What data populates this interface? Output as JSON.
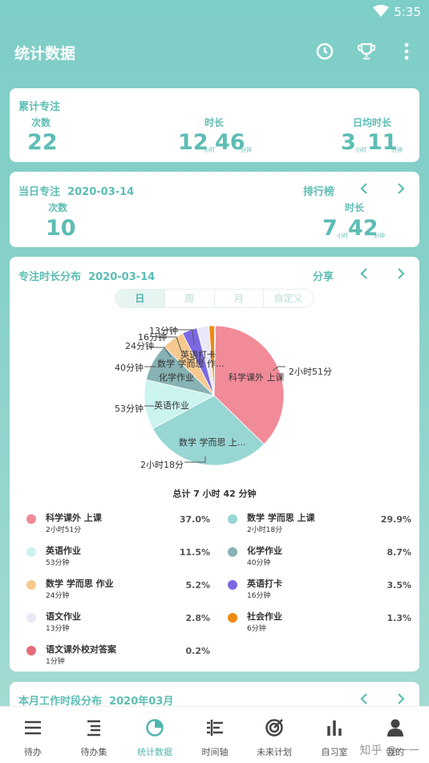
{
  "status": {
    "time": "5:35"
  },
  "appbar": {
    "title": "统计数据"
  },
  "cumulative": {
    "title": "累计专注",
    "count_label": "次数",
    "count": "22",
    "duration_label": "时长",
    "hours": "12",
    "hours_unit": "小时",
    "minutes": "46",
    "minutes_unit": "分钟",
    "daily_label": "日均时长",
    "daily_hours": "3",
    "daily_hours_unit": "小时",
    "daily_minutes": "11",
    "daily_minutes_unit": "分钟"
  },
  "today": {
    "title": "当日专注",
    "date": "2020-03-14",
    "rank_label": "排行榜",
    "count_label": "次数",
    "count": "10",
    "duration_label": "时长",
    "hours": "7",
    "hours_unit": "小时",
    "minutes": "42",
    "minutes_unit": "分钟"
  },
  "distribution": {
    "title": "专注时长分布",
    "date": "2020-03-14",
    "share_label": "分享",
    "tabs": [
      "日",
      "周",
      "月",
      "自定义"
    ],
    "total_label": "总计 7 小时 42 分钟",
    "pie_labels": {
      "science": "科学课外 上课",
      "science_dur": "2小时51分",
      "math": "数学 学而思 上...",
      "math_dur": "2小时18分",
      "english": "英语作业",
      "english_dur": "53分钟",
      "chem": "化学作业",
      "chem_dur": "40分钟",
      "mathhw": "数学 学而思 作...",
      "mathhw_dur": "24分钟",
      "engread": "英语打卡",
      "engread_dur": "16分钟",
      "chinese_dur": "13分钟",
      "other": "语文作业"
    }
  },
  "chart_data": {
    "type": "pie",
    "title": "",
    "slices": [
      {
        "name": "科学课外 上课",
        "duration": "2小时51分",
        "percent": 37.0,
        "color": "#f28b98"
      },
      {
        "name": "数学 学而思 上课",
        "duration": "2小时18分",
        "percent": 29.9,
        "color": "#98d6d4"
      },
      {
        "name": "英语作业",
        "duration": "53分钟",
        "percent": 11.5,
        "color": "#cbf3ef"
      },
      {
        "name": "化学作业",
        "duration": "40分钟",
        "percent": 8.7,
        "color": "#87b2b4"
      },
      {
        "name": "数学 学而思 作业",
        "duration": "24分钟",
        "percent": 5.2,
        "color": "#f7c98e"
      },
      {
        "name": "英语打卡",
        "duration": "16分钟",
        "percent": 3.5,
        "color": "#7b69e3"
      },
      {
        "name": "语文作业",
        "duration": "13分钟",
        "percent": 2.8,
        "color": "#e9e8f7"
      },
      {
        "name": "社会作业",
        "duration": "6分钟",
        "percent": 1.3,
        "color": "#ef8a12"
      },
      {
        "name": "语文课外校对答案",
        "duration": "1分钟",
        "percent": 0.2,
        "color": "#e66b78"
      }
    ]
  },
  "legend": [
    {
      "name": "科学课外 上课",
      "dur": "2小时51分",
      "pct": "37.0%",
      "color": "#f28b98"
    },
    {
      "name": "数学 学而思 上课",
      "dur": "2小时18分",
      "pct": "29.9%",
      "color": "#98d6d4"
    },
    {
      "name": "英语作业",
      "dur": "53分钟",
      "pct": "11.5%",
      "color": "#cbf3ef"
    },
    {
      "name": "化学作业",
      "dur": "40分钟",
      "pct": "8.7%",
      "color": "#87b2b4"
    },
    {
      "name": "数学 学而思 作业",
      "dur": "24分钟",
      "pct": "5.2%",
      "color": "#f7c98e"
    },
    {
      "name": "英语打卡",
      "dur": "16分钟",
      "pct": "3.5%",
      "color": "#7b69e3"
    },
    {
      "name": "语文作业",
      "dur": "13分钟",
      "pct": "2.8%",
      "color": "#e9e8f7"
    },
    {
      "name": "社会作业",
      "dur": "6分钟",
      "pct": "1.3%",
      "color": "#ef8a12"
    },
    {
      "name": "语文课外校对答案",
      "dur": "1分钟",
      "pct": "0.2%",
      "color": "#e66b78"
    }
  ],
  "monthly": {
    "title": "本月工作时段分布",
    "date": "2020年03月"
  },
  "nav": [
    {
      "label": "待办",
      "icon": "list-icon"
    },
    {
      "label": "待办集",
      "icon": "list-set-icon"
    },
    {
      "label": "统计数据",
      "icon": "pie-chart-icon"
    },
    {
      "label": "时间轴",
      "icon": "timeline-icon"
    },
    {
      "label": "未来计划",
      "icon": "target-icon"
    },
    {
      "label": "自习室",
      "icon": "bar-chart-icon"
    },
    {
      "label": "我的",
      "icon": "person-icon"
    }
  ],
  "watermark": "知乎 @一一"
}
